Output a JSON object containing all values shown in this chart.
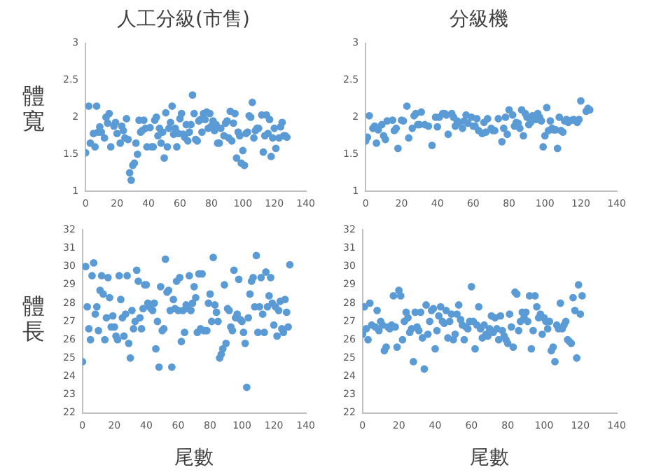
{
  "chart_data": [
    {
      "type": "scatter",
      "title": "人工分級(市售)",
      "ylabel": "體寬",
      "color": "#5b9bd5",
      "marker": "circle",
      "grid": false,
      "xlim": [
        0,
        140
      ],
      "xticks": [
        0,
        20,
        40,
        60,
        80,
        100,
        120,
        140
      ],
      "ylim": [
        1,
        3
      ],
      "yticks": [
        1,
        1.5,
        2,
        2.5,
        3
      ],
      "x": [
        0,
        2,
        3,
        5,
        6,
        7,
        8,
        9,
        10,
        12,
        13,
        14,
        15,
        16,
        18,
        19,
        20,
        22,
        23,
        24,
        25,
        26,
        27,
        28,
        29,
        30,
        31,
        32,
        33,
        34,
        35,
        36,
        37,
        38,
        39,
        41,
        42,
        43,
        44,
        45,
        46,
        47,
        48,
        49,
        50,
        51,
        52,
        53,
        54,
        55,
        56,
        57,
        58,
        59,
        60,
        61,
        62,
        63,
        64,
        65,
        66,
        67,
        68,
        69,
        70,
        71,
        72,
        73,
        74,
        75,
        76,
        77,
        78,
        79,
        80,
        81,
        82,
        83,
        84,
        85,
        86,
        88,
        89,
        90,
        91,
        92,
        93,
        94,
        95,
        96,
        97,
        98,
        99,
        100,
        101,
        102,
        103,
        104,
        105,
        106,
        107,
        108,
        109,
        110,
        112,
        113,
        114,
        115,
        116,
        117,
        118,
        119,
        120,
        121,
        123,
        124,
        125,
        126,
        127,
        128
      ],
      "values": [
        1.52,
        2.15,
        1.65,
        1.78,
        1.6,
        2.15,
        1.8,
        1.87,
        1.8,
        1.72,
        2.0,
        1.92,
        2.05,
        1.6,
        1.88,
        1.93,
        1.78,
        1.65,
        1.88,
        1.82,
        1.72,
        1.98,
        1.7,
        1.25,
        1.15,
        1.35,
        1.38,
        1.65,
        1.5,
        1.96,
        1.8,
        1.82,
        1.96,
        1.85,
        1.6,
        1.86,
        1.6,
        1.6,
        1.96,
        2.0,
        1.75,
        1.85,
        1.65,
        1.8,
        1.45,
        2.06,
        1.6,
        1.85,
        1.93,
        2.15,
        1.77,
        1.85,
        1.6,
        1.78,
        1.98,
        2.05,
        1.77,
        1.73,
        1.9,
        1.68,
        1.8,
        1.9,
        2.3,
        2.05,
        1.7,
        1.68,
        1.95,
        1.97,
        1.8,
        2.05,
        1.97,
        2.07,
        1.85,
        2.05,
        1.88,
        1.95,
        1.82,
        1.9,
        1.65,
        1.65,
        1.85,
        1.75,
        1.92,
        1.95,
        1.72,
        2.08,
        1.68,
        1.92,
        2.05,
        1.45,
        1.8,
        1.75,
        1.38,
        1.55,
        1.35,
        1.78,
        1.8,
        2.02,
        2.0,
        2.2,
        1.72,
        1.82,
        1.85,
        1.85,
        2.03,
        1.53,
        1.75,
        2.03,
        1.78,
        1.97,
        1.47,
        1.72,
        1.85,
        1.58,
        1.72,
        1.87,
        1.93,
        1.75,
        1.75,
        1.73
      ]
    },
    {
      "type": "scatter",
      "title": "分級機",
      "color": "#5b9bd5",
      "marker": "circle",
      "grid": false,
      "xlim": [
        0,
        140
      ],
      "xticks": [
        0,
        20,
        40,
        60,
        80,
        100,
        120,
        140
      ],
      "ylim": [
        1,
        3
      ],
      "yticks": [
        1,
        1.5,
        2,
        2.5,
        3
      ],
      "x": [
        0,
        1,
        2,
        4,
        5,
        6,
        7,
        9,
        10,
        11,
        12,
        15,
        16,
        17,
        18,
        20,
        21,
        23,
        24,
        26,
        27,
        28,
        29,
        30,
        31,
        33,
        35,
        37,
        39,
        40,
        41,
        43,
        44,
        45,
        46,
        48,
        49,
        50,
        51,
        52,
        54,
        55,
        56,
        57,
        59,
        60,
        61,
        62,
        63,
        65,
        66,
        67,
        68,
        70,
        71,
        72,
        74,
        76,
        77,
        78,
        79,
        80,
        82,
        83,
        84,
        85,
        86,
        87,
        88,
        89,
        90,
        91,
        92,
        93,
        95,
        96,
        97,
        98,
        99,
        100,
        101,
        102,
        103,
        104,
        105,
        106,
        107,
        108,
        109,
        110,
        111,
        112,
        113,
        115,
        116,
        118,
        119,
        120,
        123,
        124,
        125
      ],
      "values": [
        1.68,
        1.73,
        2.02,
        1.85,
        1.88,
        1.65,
        1.83,
        1.9,
        1.75,
        1.7,
        1.95,
        1.96,
        1.82,
        1.85,
        1.58,
        1.96,
        1.95,
        2.15,
        1.72,
        1.85,
        2.02,
        2.05,
        1.9,
        1.9,
        2.07,
        1.9,
        1.88,
        1.62,
        2.0,
        1.87,
        2.0,
        2.05,
        2.05,
        2.03,
        1.77,
        2.05,
        2.0,
        1.88,
        1.95,
        1.93,
        1.85,
        1.95,
        2.03,
        1.92,
        2.0,
        1.88,
        1.88,
        1.98,
        1.82,
        1.78,
        1.93,
        1.8,
        1.98,
        1.85,
        1.82,
        1.82,
        1.98,
        1.67,
        1.85,
        2.0,
        1.77,
        2.1,
        2.03,
        1.88,
        1.93,
        1.92,
        1.85,
        2.1,
        1.75,
        2.05,
        2.0,
        1.9,
        1.93,
        2.02,
        1.97,
        2.05,
        2.0,
        1.95,
        1.6,
        1.75,
        2.13,
        1.82,
        1.95,
        1.85,
        1.83,
        1.83,
        1.58,
        2.0,
        1.82,
        1.8,
        1.95,
        1.97,
        1.93,
        1.96,
        1.97,
        1.93,
        1.97,
        2.22,
        2.08,
        2.12,
        2.1
      ]
    },
    {
      "type": "scatter",
      "ylabel": "體長",
      "xlabel": "尾數",
      "color": "#5b9bd5",
      "marker": "circle",
      "grid": false,
      "xlim": [
        0,
        140
      ],
      "xticks": [
        0,
        20,
        40,
        60,
        80,
        100,
        120,
        140
      ],
      "ylim": [
        22,
        32
      ],
      "yticks": [
        22,
        23,
        24,
        25,
        26,
        27,
        28,
        29,
        30,
        31,
        32
      ],
      "x": [
        0,
        2,
        3,
        4,
        5,
        6,
        7,
        8,
        9,
        10,
        11,
        12,
        13,
        14,
        15,
        16,
        17,
        18,
        19,
        20,
        21,
        22,
        23,
        24,
        25,
        26,
        27,
        28,
        29,
        30,
        31,
        32,
        33,
        34,
        35,
        36,
        37,
        38,
        39,
        40,
        41,
        42,
        43,
        44,
        45,
        46,
        47,
        48,
        49,
        50,
        51,
        52,
        53,
        54,
        55,
        56,
        57,
        58,
        59,
        60,
        61,
        62,
        63,
        64,
        65,
        66,
        67,
        68,
        69,
        70,
        71,
        72,
        73,
        74,
        75,
        76,
        77,
        78,
        79,
        80,
        81,
        82,
        83,
        84,
        85,
        86,
        87,
        88,
        89,
        90,
        91,
        92,
        93,
        94,
        95,
        96,
        97,
        98,
        99,
        100,
        101,
        102,
        103,
        104,
        105,
        106,
        107,
        108,
        109,
        110,
        111,
        112,
        113,
        114,
        115,
        116,
        117,
        118,
        119,
        120,
        121,
        122,
        123,
        124,
        125,
        126,
        127,
        128,
        129,
        130
      ],
      "values": [
        24.8,
        30,
        27.8,
        26.6,
        26,
        29.5,
        30.2,
        27.4,
        27.8,
        26.5,
        28.7,
        29.5,
        28.5,
        26,
        27.2,
        29.4,
        28.3,
        26.7,
        27.3,
        26.7,
        26.2,
        26,
        29.5,
        28.2,
        27.2,
        26.2,
        27.4,
        29.5,
        25.8,
        25,
        27.6,
        26.6,
        27,
        29.8,
        29.2,
        27.2,
        26.6,
        27.7,
        29,
        29,
        28,
        27.8,
        27.7,
        27.6,
        28,
        25.5,
        27,
        24.5,
        28.9,
        26.5,
        26.6,
        30.4,
        28.6,
        28.7,
        27.6,
        24.5,
        28.2,
        27.7,
        29.2,
        27.6,
        29.4,
        25.9,
        27.6,
        26.4,
        27.9,
        27.7,
        29.5,
        27.6,
        28,
        28.9,
        28.3,
        26.4,
        29.6,
        26.6,
        29.6,
        26.5,
        26.5,
        26.5,
        28,
        28.5,
        27,
        30.5,
        27.9,
        27.5,
        27,
        25,
        25.2,
        25.5,
        29,
        25.8,
        27.7,
        27.6,
        26.7,
        26.5,
        29.8,
        27.2,
        27.4,
        29.3,
        27.1,
        27,
        26.4,
        25.8,
        23.4,
        27.2,
        28.5,
        29.2,
        29.4,
        27.8,
        30.6,
        26.4,
        27.8,
        29.4,
        27.4,
        26.4,
        29.7,
        27.8,
        28.4,
        29.4,
        28,
        26.8,
        27.8,
        26.2,
        27.6,
        28.1,
        26.6,
        26.4,
        28.2,
        27.5,
        26.7,
        30.1
      ]
    },
    {
      "type": "scatter",
      "xlabel": "尾數",
      "color": "#5b9bd5",
      "marker": "circle",
      "grid": false,
      "xlim": [
        0,
        140
      ],
      "xticks": [
        0,
        20,
        40,
        60,
        80,
        100,
        120,
        140
      ],
      "ylim": [
        22,
        32
      ],
      "yticks": [
        22,
        23,
        24,
        25,
        26,
        27,
        28,
        29,
        30,
        31,
        32
      ],
      "x": [
        0,
        1,
        2,
        3,
        4,
        5,
        7,
        8,
        9,
        10,
        11,
        12,
        13,
        14,
        15,
        16,
        17,
        18,
        19,
        20,
        21,
        22,
        23,
        24,
        25,
        26,
        27,
        28,
        29,
        30,
        31,
        32,
        33,
        34,
        35,
        36,
        37,
        38,
        39,
        40,
        41,
        42,
        43,
        44,
        45,
        46,
        47,
        48,
        49,
        50,
        51,
        52,
        53,
        54,
        55,
        56,
        57,
        58,
        59,
        60,
        61,
        62,
        63,
        64,
        65,
        66,
        67,
        68,
        69,
        70,
        71,
        72,
        73,
        74,
        75,
        76,
        77,
        78,
        79,
        80,
        81,
        82,
        83,
        84,
        85,
        86,
        87,
        88,
        89,
        90,
        91,
        92,
        93,
        94,
        95,
        96,
        97,
        98,
        99,
        100,
        101,
        102,
        103,
        104,
        105,
        106,
        107,
        108,
        109,
        110,
        111,
        112,
        113,
        114,
        115,
        116,
        117,
        118,
        119,
        120,
        121
      ],
      "values": [
        26.3,
        27.8,
        26.6,
        26,
        28,
        26.8,
        26.7,
        27.6,
        26.5,
        27,
        26.8,
        25.4,
        25.6,
        26.7,
        26.6,
        26.8,
        28.4,
        26.7,
        25.6,
        28.7,
        28.4,
        26,
        27,
        27.5,
        27.2,
        26.4,
        26.6,
        24.8,
        27.5,
        26.7,
        26.5,
        27.5,
        26.1,
        24.4,
        27.9,
        26.3,
        27,
        27.6,
        27.7,
        25.5,
        26.5,
        27.3,
        27.8,
        27,
        26.9,
        27.6,
        26.1,
        27,
        27.4,
        26,
        26.3,
        27.4,
        27.9,
        27.1,
        26.8,
        26,
        26.7,
        26.6,
        27,
        28.9,
        27,
        25.5,
        26.8,
        27.8,
        26.6,
        26.1,
        26.8,
        26.3,
        26.2,
        26.6,
        27.3,
        26.4,
        27.2,
        26.6,
        26,
        27.3,
        26.5,
        26.2,
        26,
        25.8,
        27.4,
        26.7,
        25.6,
        28.6,
        28.5,
        26.5,
        27,
        27.5,
        27.2,
        27.5,
        27,
        28.4,
        25.5,
        26.5,
        28.4,
        27.8,
        27.2,
        27.4,
        26.3,
        27.2,
        27,
        26.6,
        27,
        25.4,
        25.6,
        24.8,
        26.8,
        26.6,
        28,
        26.6,
        26.8,
        27,
        26,
        25.9,
        25.8,
        28.3,
        27.6,
        25,
        29,
        27.4,
        28.4
      ]
    }
  ]
}
